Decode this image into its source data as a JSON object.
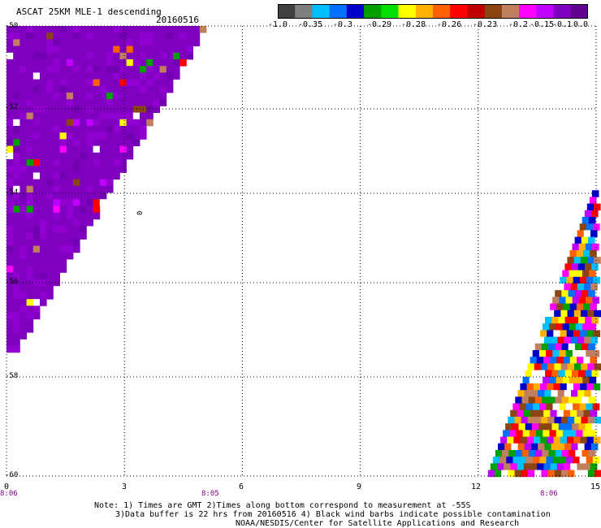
{
  "header": {
    "title": "ASCAT 25KM MLE-1 descending",
    "date": "20160516"
  },
  "colorbar": {
    "colors": [
      "#404040",
      "#7f7f7f",
      "#00bfff",
      "#0070ff",
      "#0000c8",
      "#00a000",
      "#00e000",
      "#ffff00",
      "#ffb000",
      "#ff6000",
      "#ff0000",
      "#c00000",
      "#8b4513",
      "#c08060",
      "#ff00ff",
      "#c000ff",
      "#8000c0",
      "#600090"
    ],
    "labels": [
      "-1.0",
      "-0.35",
      "-0.3",
      "-0.29",
      "-0.28",
      "-0.26",
      "-0.23",
      "-0.2",
      "-0.15",
      "-0.1",
      "0.0"
    ]
  },
  "axes": {
    "y_ticks": [
      "-50",
      "-52",
      "-54",
      "-56",
      "-58",
      "-60"
    ],
    "x_ticks": [
      "0",
      "3",
      "6",
      "9",
      "12",
      "15"
    ],
    "time_labels": [
      "8:06",
      "8:05",
      "8:06"
    ]
  },
  "map": {
    "contour_label": "0"
  },
  "notes": {
    "line1": "Note: 1) Times are GMT 2)Times along bottom correspond to measurement at -55S",
    "line2": "3)Data buffer is 22 hrs from 20160516 4) Black wind barbs indicate possible contamination",
    "line3": "NOAA/NESDIS/Center for Satellite Applications and Research"
  }
}
